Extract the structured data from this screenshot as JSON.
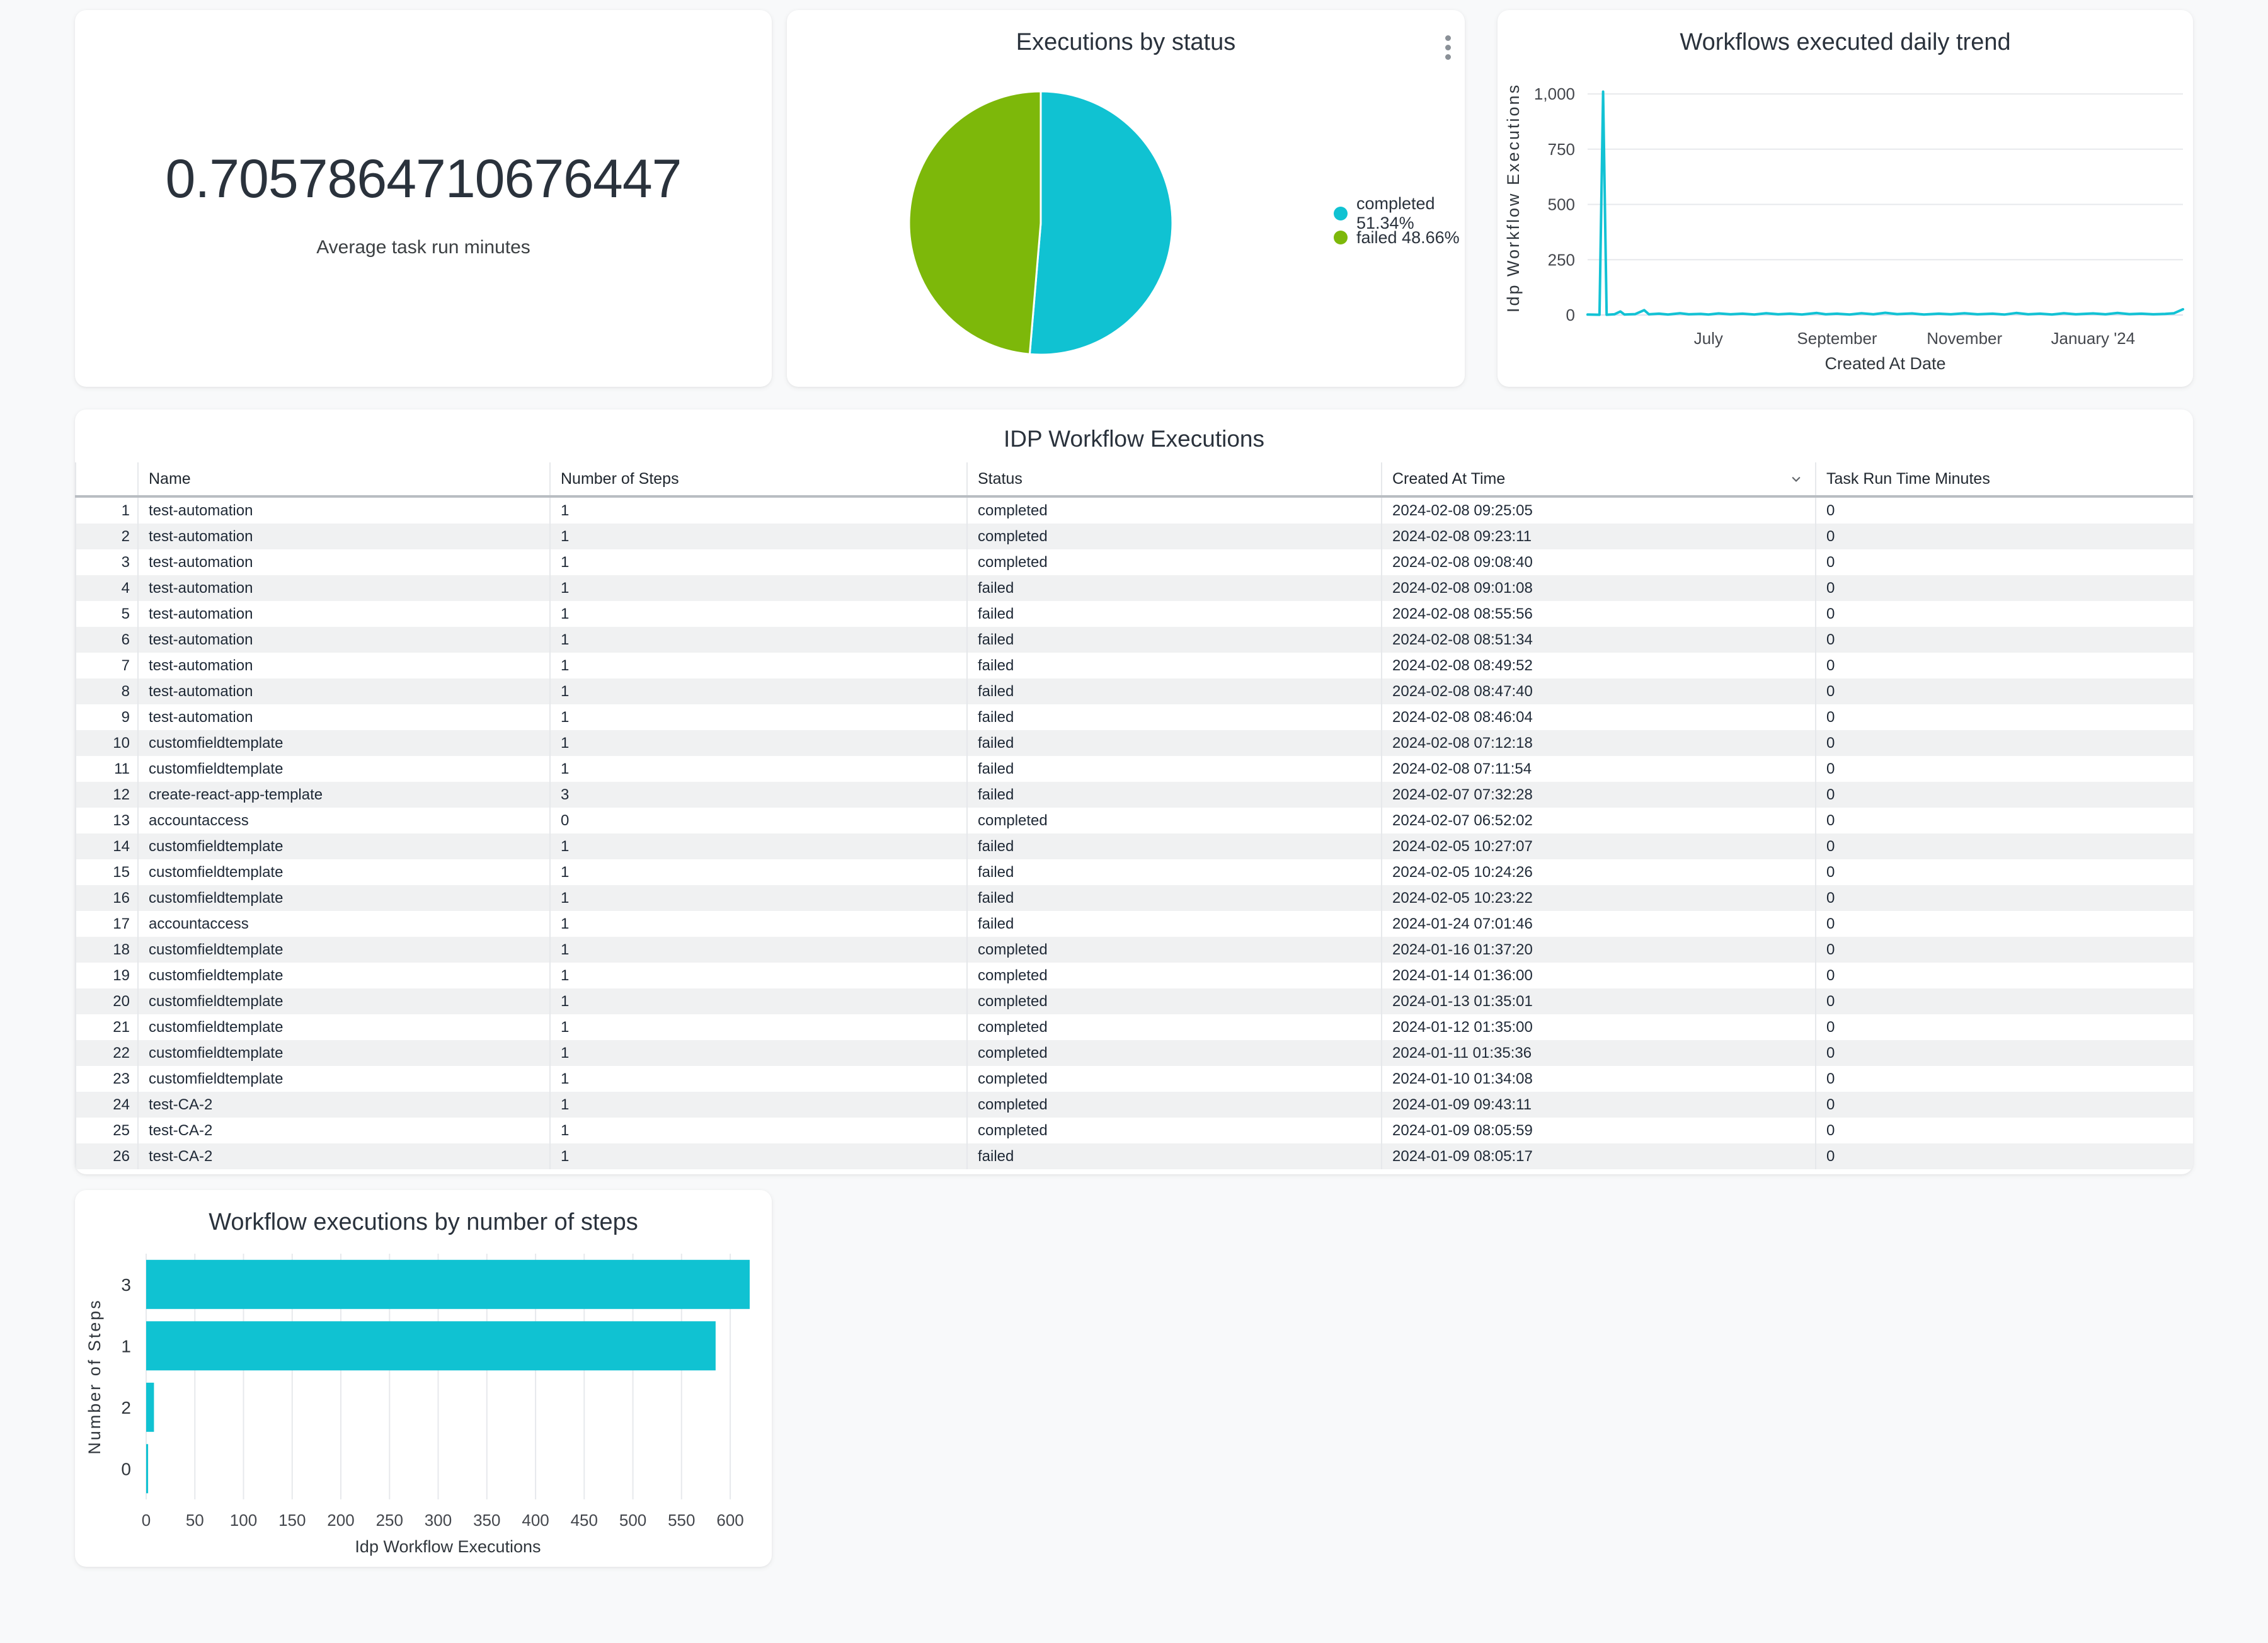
{
  "colors": {
    "accent_cyan": "#10c2d2",
    "accent_green": "#7db80a",
    "background": "#f8f9fa",
    "gridline": "#e7e9ec"
  },
  "metric_card": {
    "value": "0.7057864710676447",
    "label": "Average task run minutes"
  },
  "pie_card": {
    "title": "Executions by status",
    "menu_icon": "kebab-vertical-ellipsis",
    "legend": [
      {
        "label": "completed 51.34%",
        "color": "#10c2d2"
      },
      {
        "label": "failed 48.66%",
        "color": "#7db80a"
      }
    ]
  },
  "trend_card": {
    "title": "Workflows executed daily trend"
  },
  "bar_card": {
    "title": "Workflow executions by number of steps"
  },
  "table_card": {
    "title": "IDP Workflow Executions",
    "columns": [
      "Name",
      "Number of Steps",
      "Status",
      "Created At Time",
      "Task Run Time Minutes"
    ],
    "sorted_column": "Created At Time",
    "sort_direction": "descending",
    "rows": [
      {
        "index": "1",
        "name": "test-automation",
        "steps": "1",
        "status": "completed",
        "created": "2024-02-08 09:25:05",
        "task_run": "0"
      },
      {
        "index": "2",
        "name": "test-automation",
        "steps": "1",
        "status": "completed",
        "created": "2024-02-08 09:23:11",
        "task_run": "0"
      },
      {
        "index": "3",
        "name": "test-automation",
        "steps": "1",
        "status": "completed",
        "created": "2024-02-08 09:08:40",
        "task_run": "0"
      },
      {
        "index": "4",
        "name": "test-automation",
        "steps": "1",
        "status": "failed",
        "created": "2024-02-08 09:01:08",
        "task_run": "0"
      },
      {
        "index": "5",
        "name": "test-automation",
        "steps": "1",
        "status": "failed",
        "created": "2024-02-08 08:55:56",
        "task_run": "0"
      },
      {
        "index": "6",
        "name": "test-automation",
        "steps": "1",
        "status": "failed",
        "created": "2024-02-08 08:51:34",
        "task_run": "0"
      },
      {
        "index": "7",
        "name": "test-automation",
        "steps": "1",
        "status": "failed",
        "created": "2024-02-08 08:49:52",
        "task_run": "0"
      },
      {
        "index": "8",
        "name": "test-automation",
        "steps": "1",
        "status": "failed",
        "created": "2024-02-08 08:47:40",
        "task_run": "0"
      },
      {
        "index": "9",
        "name": "test-automation",
        "steps": "1",
        "status": "failed",
        "created": "2024-02-08 08:46:04",
        "task_run": "0"
      },
      {
        "index": "10",
        "name": "customfieldtemplate",
        "steps": "1",
        "status": "failed",
        "created": "2024-02-08 07:12:18",
        "task_run": "0"
      },
      {
        "index": "11",
        "name": "customfieldtemplate",
        "steps": "1",
        "status": "failed",
        "created": "2024-02-08 07:11:54",
        "task_run": "0"
      },
      {
        "index": "12",
        "name": "create-react-app-template",
        "steps": "3",
        "status": "failed",
        "created": "2024-02-07 07:32:28",
        "task_run": "0"
      },
      {
        "index": "13",
        "name": "accountaccess",
        "steps": "0",
        "status": "completed",
        "created": "2024-02-07 06:52:02",
        "task_run": "0"
      },
      {
        "index": "14",
        "name": "customfieldtemplate",
        "steps": "1",
        "status": "failed",
        "created": "2024-02-05 10:27:07",
        "task_run": "0"
      },
      {
        "index": "15",
        "name": "customfieldtemplate",
        "steps": "1",
        "status": "failed",
        "created": "2024-02-05 10:24:26",
        "task_run": "0"
      },
      {
        "index": "16",
        "name": "customfieldtemplate",
        "steps": "1",
        "status": "failed",
        "created": "2024-02-05 10:23:22",
        "task_run": "0"
      },
      {
        "index": "17",
        "name": "accountaccess",
        "steps": "1",
        "status": "failed",
        "created": "2024-01-24 07:01:46",
        "task_run": "0"
      },
      {
        "index": "18",
        "name": "customfieldtemplate",
        "steps": "1",
        "status": "completed",
        "created": "2024-01-16 01:37:20",
        "task_run": "0"
      },
      {
        "index": "19",
        "name": "customfieldtemplate",
        "steps": "1",
        "status": "completed",
        "created": "2024-01-14 01:36:00",
        "task_run": "0"
      },
      {
        "index": "20",
        "name": "customfieldtemplate",
        "steps": "1",
        "status": "completed",
        "created": "2024-01-13 01:35:01",
        "task_run": "0"
      },
      {
        "index": "21",
        "name": "customfieldtemplate",
        "steps": "1",
        "status": "completed",
        "created": "2024-01-12 01:35:00",
        "task_run": "0"
      },
      {
        "index": "22",
        "name": "customfieldtemplate",
        "steps": "1",
        "status": "completed",
        "created": "2024-01-11 01:35:36",
        "task_run": "0"
      },
      {
        "index": "23",
        "name": "customfieldtemplate",
        "steps": "1",
        "status": "completed",
        "created": "2024-01-10 01:34:08",
        "task_run": "0"
      },
      {
        "index": "24",
        "name": "test-CA-2",
        "steps": "1",
        "status": "completed",
        "created": "2024-01-09 09:43:11",
        "task_run": "0"
      },
      {
        "index": "25",
        "name": "test-CA-2",
        "steps": "1",
        "status": "completed",
        "created": "2024-01-09 08:05:59",
        "task_run": "0"
      },
      {
        "index": "26",
        "name": "test-CA-2",
        "steps": "1",
        "status": "failed",
        "created": "2024-01-09 08:05:17",
        "task_run": "0"
      }
    ]
  },
  "chart_data": [
    {
      "id": "pie",
      "type": "pie",
      "title": "Executions by status",
      "labels": [
        "completed",
        "failed"
      ],
      "values": [
        51.34,
        48.66
      ],
      "colors": [
        "#10c2d2",
        "#7db80a"
      ],
      "legend_position": "right"
    },
    {
      "id": "trend",
      "type": "line",
      "title": "Workflows executed daily trend",
      "xlabel": "Created At Date",
      "ylabel": "Idp Workflow Executions",
      "line_color": "#12c2d4",
      "ylim": [
        0,
        1060
      ],
      "yticks": [
        {
          "v": 0,
          "label": "0"
        },
        {
          "v": 250,
          "label": "250"
        },
        {
          "v": 500,
          "label": "500"
        },
        {
          "v": 750,
          "label": "750"
        },
        {
          "v": 1000,
          "label": "1,000"
        }
      ],
      "xticks": [
        {
          "pos": 0.203,
          "label": "July"
        },
        {
          "pos": 0.419,
          "label": "September"
        },
        {
          "pos": 0.633,
          "label": "November"
        },
        {
          "pos": 0.849,
          "label": "January '24"
        }
      ],
      "peak": {
        "pos": 0.026,
        "value": 1010
      },
      "points": [
        [
          0,
          2
        ],
        [
          0.02,
          1
        ],
        [
          0.026,
          1010
        ],
        [
          0.032,
          1
        ],
        [
          0.045,
          3
        ],
        [
          0.055,
          16
        ],
        [
          0.062,
          2
        ],
        [
          0.08,
          4
        ],
        [
          0.095,
          22
        ],
        [
          0.103,
          3
        ],
        [
          0.12,
          6
        ],
        [
          0.135,
          2
        ],
        [
          0.155,
          8
        ],
        [
          0.17,
          3
        ],
        [
          0.19,
          5
        ],
        [
          0.203,
          2
        ],
        [
          0.22,
          7
        ],
        [
          0.24,
          3
        ],
        [
          0.26,
          6
        ],
        [
          0.28,
          2
        ],
        [
          0.3,
          8
        ],
        [
          0.32,
          3
        ],
        [
          0.34,
          6
        ],
        [
          0.36,
          2
        ],
        [
          0.385,
          9
        ],
        [
          0.4,
          3
        ],
        [
          0.419,
          6
        ],
        [
          0.44,
          2
        ],
        [
          0.46,
          8
        ],
        [
          0.48,
          3
        ],
        [
          0.5,
          10
        ],
        [
          0.52,
          4
        ],
        [
          0.545,
          7
        ],
        [
          0.565,
          2
        ],
        [
          0.59,
          6
        ],
        [
          0.61,
          3
        ],
        [
          0.633,
          8
        ],
        [
          0.655,
          3
        ],
        [
          0.68,
          6
        ],
        [
          0.7,
          2
        ],
        [
          0.72,
          9
        ],
        [
          0.74,
          3
        ],
        [
          0.76,
          6
        ],
        [
          0.78,
          2
        ],
        [
          0.8,
          8
        ],
        [
          0.82,
          3
        ],
        [
          0.849,
          7
        ],
        [
          0.87,
          3
        ],
        [
          0.89,
          9
        ],
        [
          0.91,
          4
        ],
        [
          0.93,
          6
        ],
        [
          0.95,
          3
        ],
        [
          0.97,
          5
        ],
        [
          0.985,
          8
        ],
        [
          1,
          26
        ]
      ],
      "grid": true
    },
    {
      "id": "steps",
      "type": "bar",
      "orientation": "horizontal",
      "title": "Workflow executions by number of steps",
      "xlabel": "Idp Workflow Executions",
      "ylabel": "Number of Steps",
      "bar_color": "#10c2d2",
      "categories": [
        "3",
        "1",
        "2",
        "0"
      ],
      "values": [
        620,
        585,
        8,
        2
      ],
      "xticks": [
        0,
        50,
        100,
        150,
        200,
        250,
        300,
        350,
        400,
        450,
        500,
        550,
        600
      ],
      "xlim": [
        0,
        620
      ],
      "grid": true
    }
  ]
}
